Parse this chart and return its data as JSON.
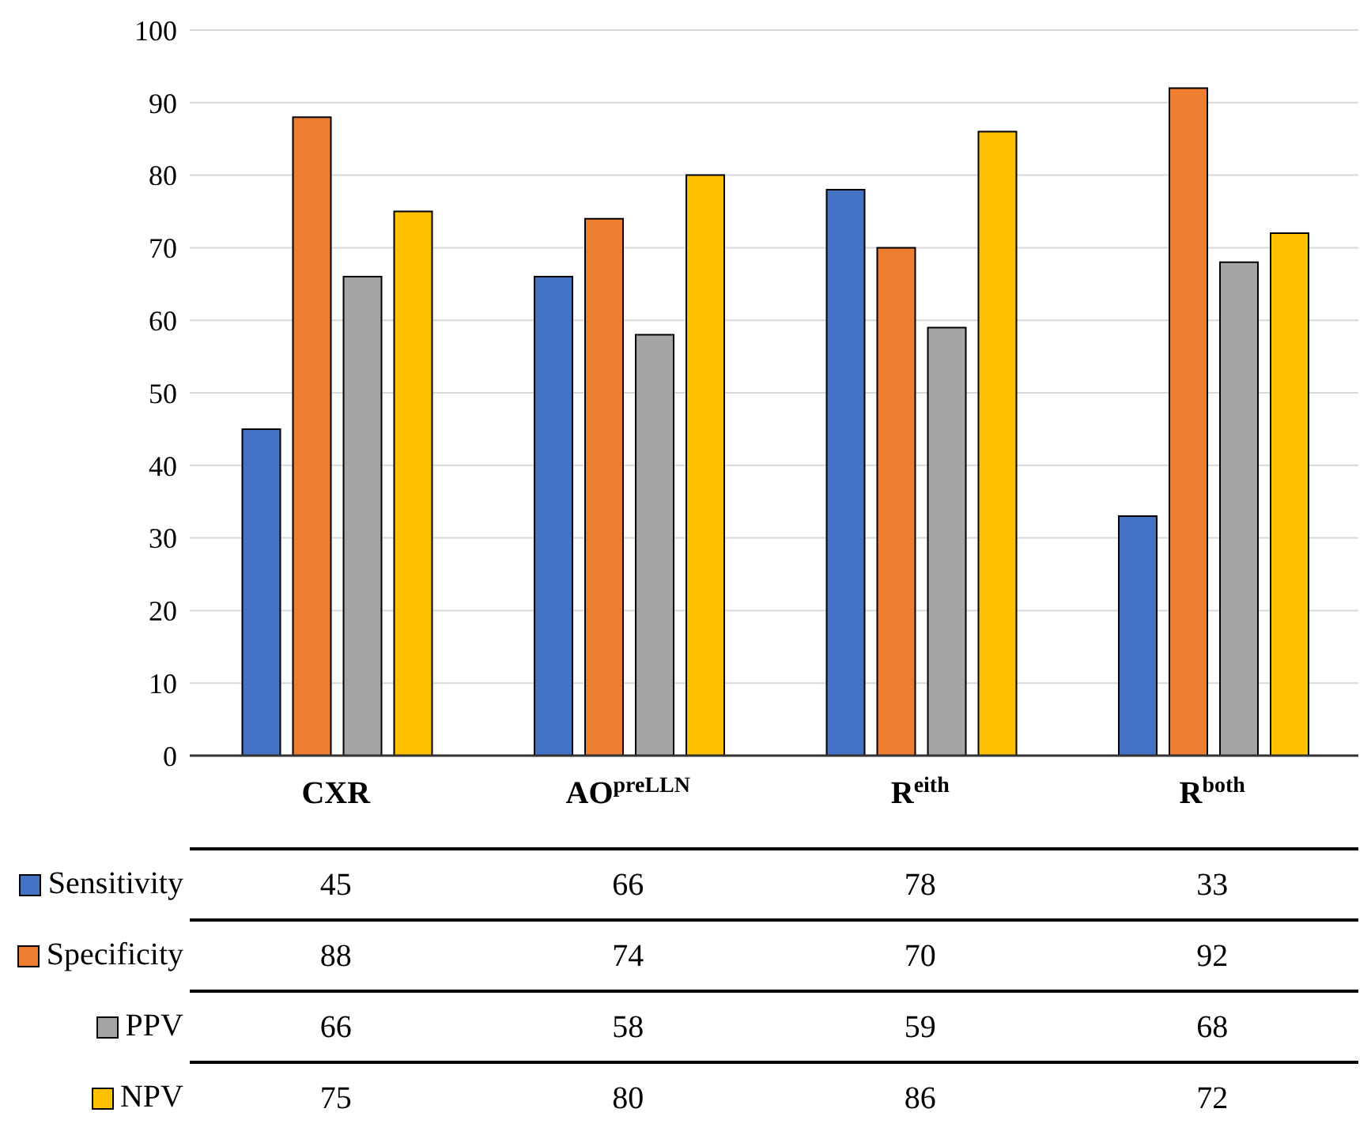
{
  "chart_data": {
    "type": "bar",
    "categories": [
      "CXR",
      "AO$^{preLLN}$",
      "R$^{eith}$",
      "R$^{both}$"
    ],
    "series": [
      {
        "name": "Sensitivity",
        "color": "#4472c4",
        "values": [
          45,
          66,
          78,
          33
        ]
      },
      {
        "name": "Specificity",
        "color": "#ed7d31",
        "values": [
          88,
          74,
          70,
          92
        ]
      },
      {
        "name": "PPV",
        "color": "#a5a5a5",
        "values": [
          66,
          58,
          59,
          68
        ]
      },
      {
        "name": "NPV",
        "color": "#ffc000",
        "values": [
          75,
          80,
          86,
          72
        ]
      }
    ],
    "ylim": [
      0,
      100
    ],
    "yticks": [
      0,
      10,
      20,
      30,
      40,
      50,
      60,
      70,
      80,
      90,
      100
    ],
    "grid": "y",
    "data_labels": true,
    "legend": "bottom left"
  }
}
